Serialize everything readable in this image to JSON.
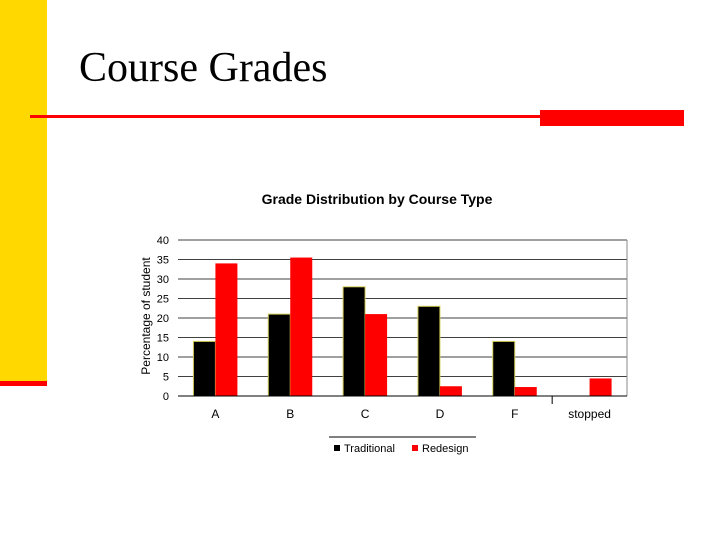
{
  "slide": {
    "title": "Course Grades",
    "colors": {
      "left_bar": "#ffd800",
      "accent": "#ff0000"
    }
  },
  "chart_data": {
    "type": "bar",
    "title": "Grade Distribution by Course Type",
    "xlabel": "",
    "ylabel": "Percentage of student",
    "categories": [
      "A",
      "B",
      "C",
      "D",
      "F",
      "stopped"
    ],
    "series": [
      {
        "name": "Traditional",
        "color": "#000000",
        "values": [
          14,
          21,
          28,
          23,
          14,
          0
        ]
      },
      {
        "name": "Redesign",
        "color": "#ff0000",
        "values": [
          34,
          35.5,
          21,
          2.5,
          2.3,
          4.5
        ]
      }
    ],
    "ylim": [
      0,
      40
    ],
    "yticks": [
      0,
      5,
      10,
      15,
      20,
      25,
      30,
      35,
      40
    ],
    "grid": "horizontal",
    "legend_position": "bottom"
  }
}
